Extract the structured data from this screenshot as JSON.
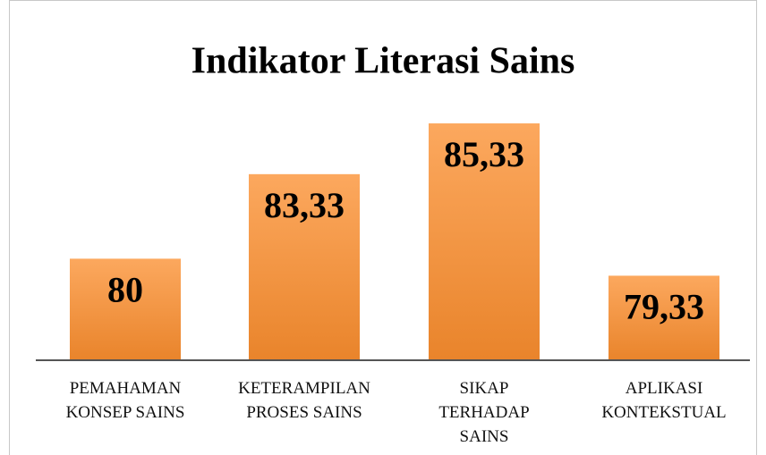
{
  "chart_data": {
    "type": "bar",
    "title": "Indikator Literasi Sains",
    "categories": [
      "PEMAHAMAN\nKONSEP SAINS",
      "KETERAMPILAN\nPROSES SAINS",
      "SIKAP\nTERHADAP\nSAINS",
      "APLIKASI\nKONTEKSTUAL"
    ],
    "values": [
      80,
      83.33,
      85.33,
      79.33
    ],
    "value_labels": [
      "80",
      "83,33",
      "85,33",
      "79,33"
    ],
    "color": "#f7953f",
    "ylim": [
      76,
      86
    ]
  }
}
